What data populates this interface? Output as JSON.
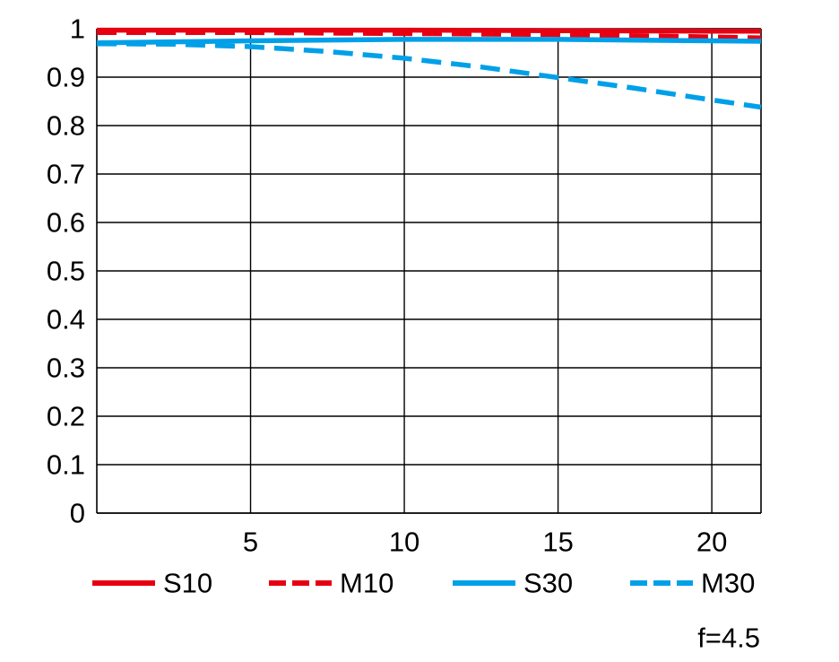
{
  "chart_data": {
    "type": "line",
    "xlim": [
      0,
      21.6
    ],
    "ylim": [
      0,
      1
    ],
    "x_ticks": [
      5,
      10,
      15,
      20
    ],
    "x_tick_labels": [
      "5",
      "10",
      "15",
      "20"
    ],
    "y_ticks": [
      1,
      0.9,
      0.8,
      0.7,
      0.6,
      0.5,
      0.4,
      0.3,
      0.2,
      0.1,
      0
    ],
    "y_tick_labels": [
      "1",
      "0.9",
      "0.8",
      "0.7",
      "0.6",
      "0.5",
      "0.4",
      "0.3",
      "0.2",
      "0.1",
      "0"
    ],
    "grid": true,
    "legend_position": "bottom",
    "series": [
      {
        "name": "S10",
        "color": "#e60012",
        "line_style": "solid",
        "x": [
          0,
          5,
          10,
          15,
          20,
          21.6
        ],
        "y": [
          0.997,
          0.997,
          0.997,
          0.996,
          0.995,
          0.995
        ]
      },
      {
        "name": "M10",
        "color": "#e60012",
        "line_style": "dashed",
        "x": [
          0,
          5,
          10,
          15,
          20,
          21.6
        ],
        "y": [
          0.992,
          0.992,
          0.99,
          0.988,
          0.983,
          0.981
        ]
      },
      {
        "name": "S30",
        "color": "#00a0e9",
        "line_style": "solid",
        "x": [
          0,
          5,
          10,
          15,
          20,
          21.6
        ],
        "y": [
          0.971,
          0.975,
          0.978,
          0.978,
          0.975,
          0.974
        ]
      },
      {
        "name": "M30",
        "color": "#00a0e9",
        "line_style": "dashed",
        "x": [
          0,
          2.5,
          5,
          7.5,
          10,
          12.5,
          15,
          17.5,
          20,
          21.6
        ],
        "y": [
          0.969,
          0.968,
          0.963,
          0.953,
          0.939,
          0.921,
          0.899,
          0.877,
          0.853,
          0.838
        ]
      }
    ]
  },
  "annotation": "f=4.5"
}
